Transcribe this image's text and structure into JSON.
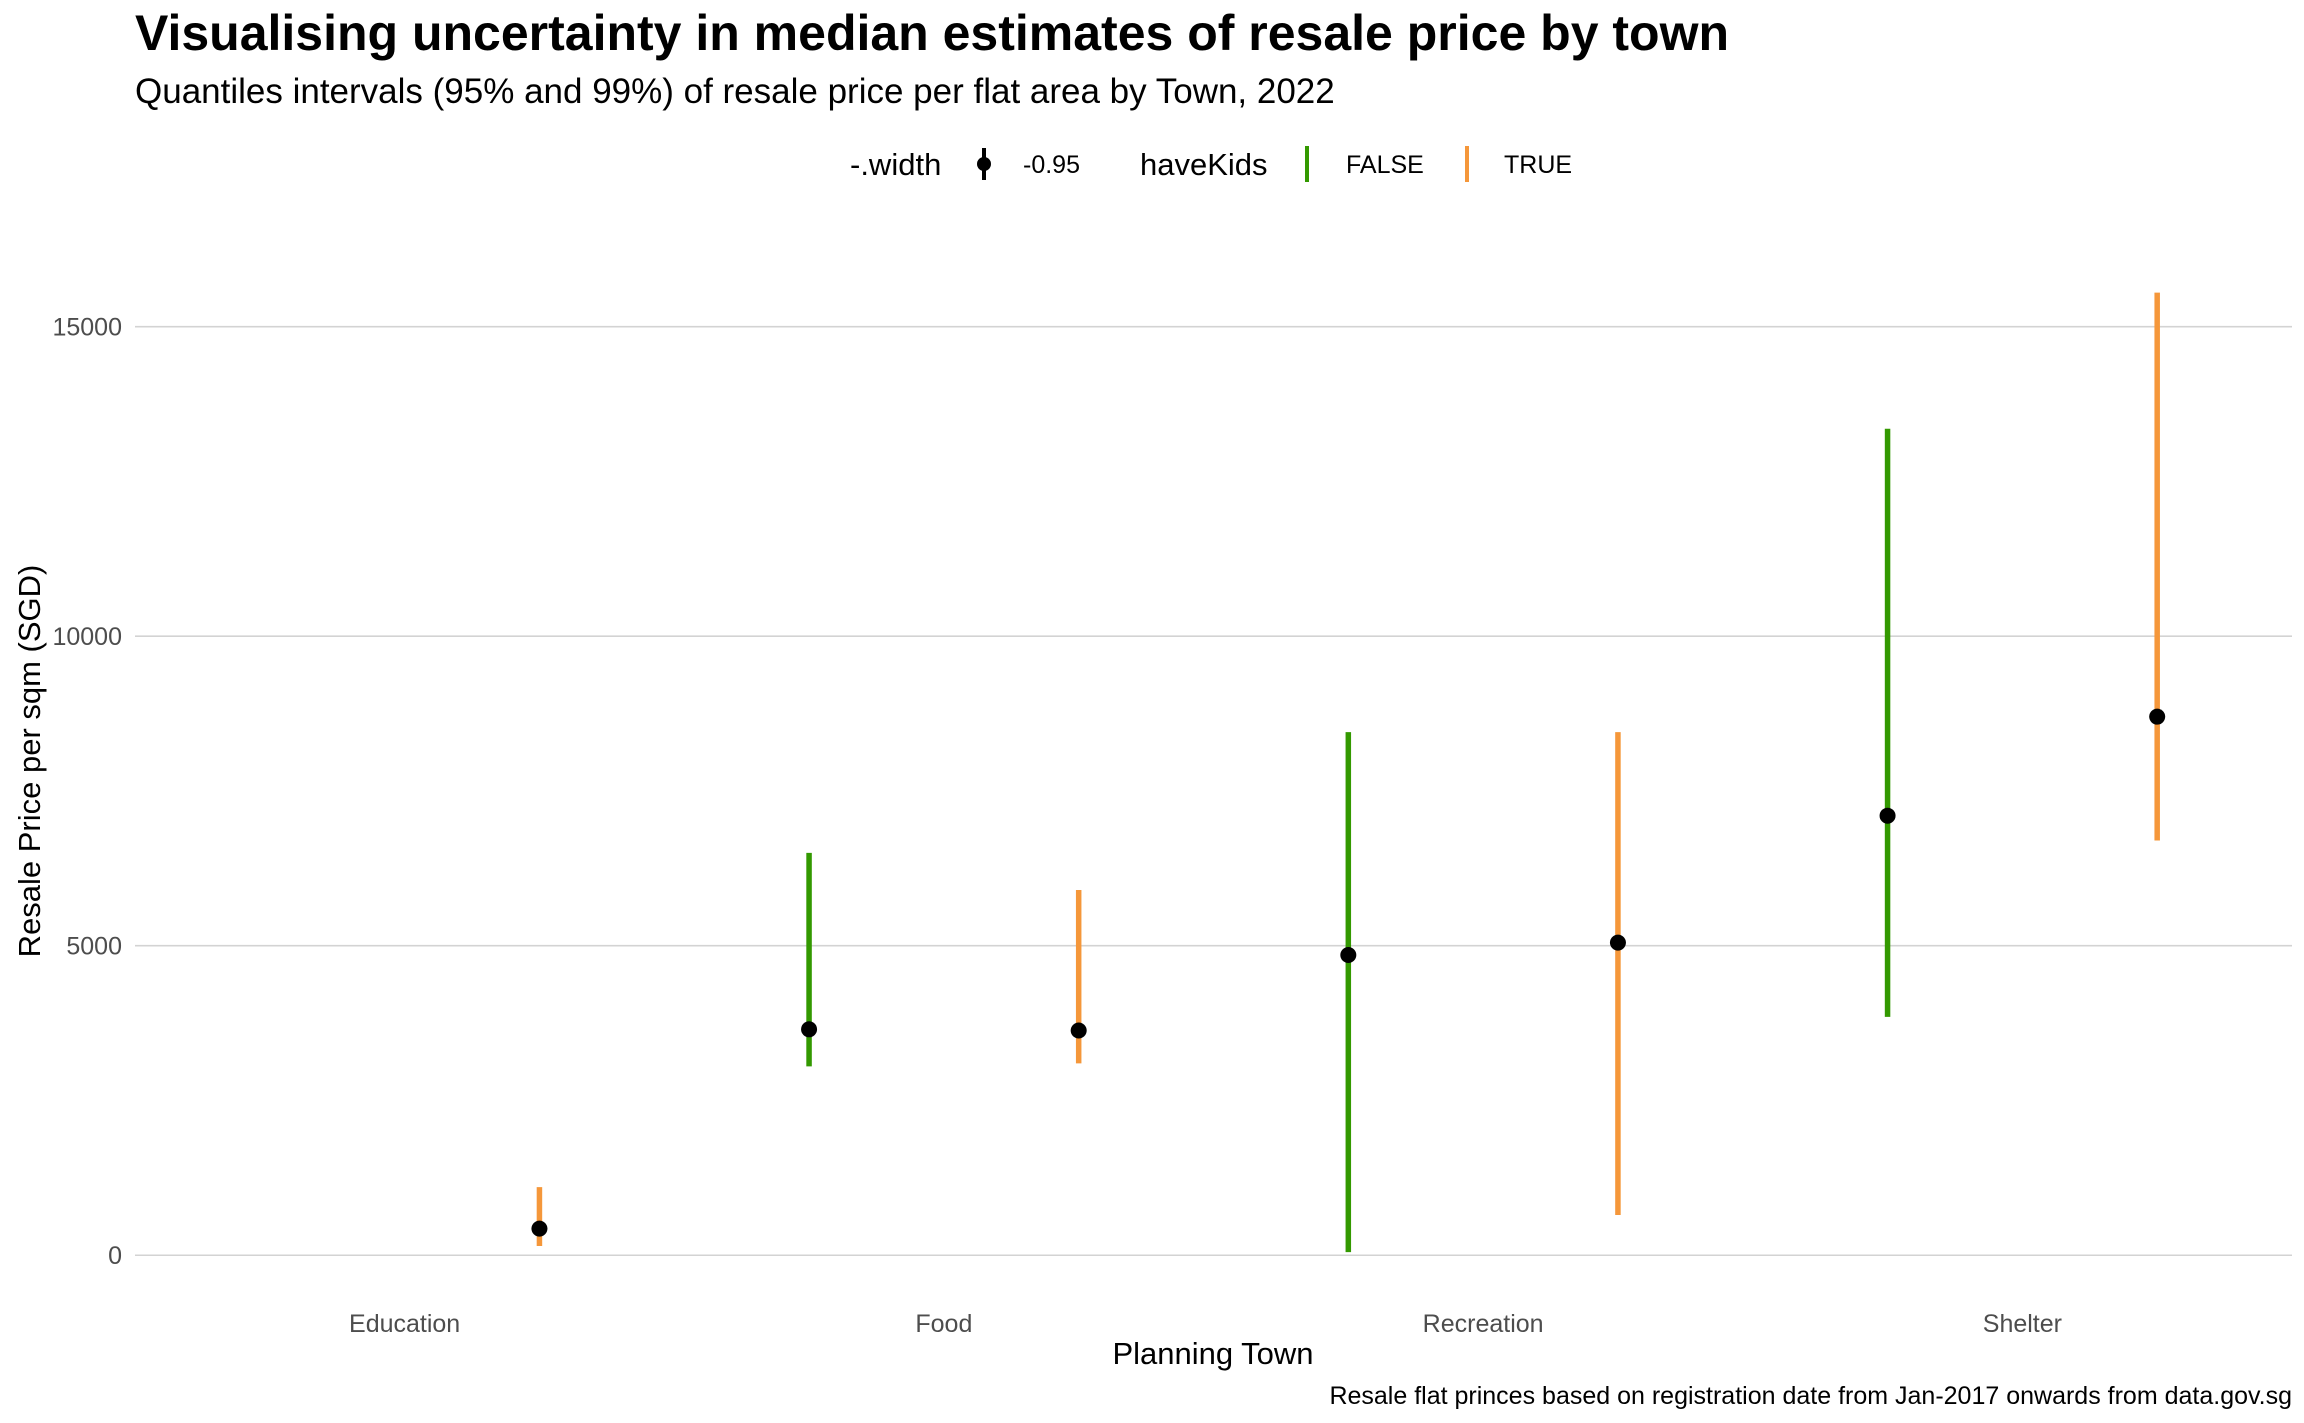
{
  "chart_data": {
    "type": "pointrange",
    "title": "Visualising uncertainty in median estimates of resale price by town",
    "subtitle": "Quantiles intervals (95% and 99%) of resale price per flat area by Town, 2022",
    "xlabel": "Planning Town",
    "ylabel": "Resale Price per sqm (SGD)",
    "caption": "Resale flat princes based on registration date from Jan-2017 onwards from data.gov.sg",
    "categories": [
      "Education",
      "Food",
      "Recreation",
      "Shelter"
    ],
    "ylim": [
      -400,
      16400
    ],
    "yticks": [
      0,
      5000,
      10000,
      15000
    ],
    "grid": "horizontal",
    "legend": {
      "position": "top",
      "width_title": "-.width",
      "width_label": "-0.95",
      "color_title": "haveKids",
      "entries": [
        {
          "label": "FALSE",
          "color": "#339900"
        },
        {
          "label": "TRUE",
          "color": "#F5973A"
        }
      ]
    },
    "series": [
      {
        "name": "FALSE",
        "color": "#339900",
        "points": [
          {
            "category": "Food",
            "median": 3650,
            "lower": 3050,
            "upper": 6500
          },
          {
            "category": "Recreation",
            "median": 4850,
            "lower": 50,
            "upper": 8450
          },
          {
            "category": "Shelter",
            "median": 7100,
            "lower": 3850,
            "upper": 13350
          }
        ]
      },
      {
        "name": "TRUE",
        "color": "#F5973A",
        "points": [
          {
            "category": "Education",
            "median": 430,
            "lower": 150,
            "upper": 1100
          },
          {
            "category": "Food",
            "median": 3630,
            "lower": 3100,
            "upper": 5900
          },
          {
            "category": "Recreation",
            "median": 5050,
            "lower": 650,
            "upper": 8450
          },
          {
            "category": "Shelter",
            "median": 8700,
            "lower": 6700,
            "upper": 15550
          }
        ]
      }
    ]
  }
}
